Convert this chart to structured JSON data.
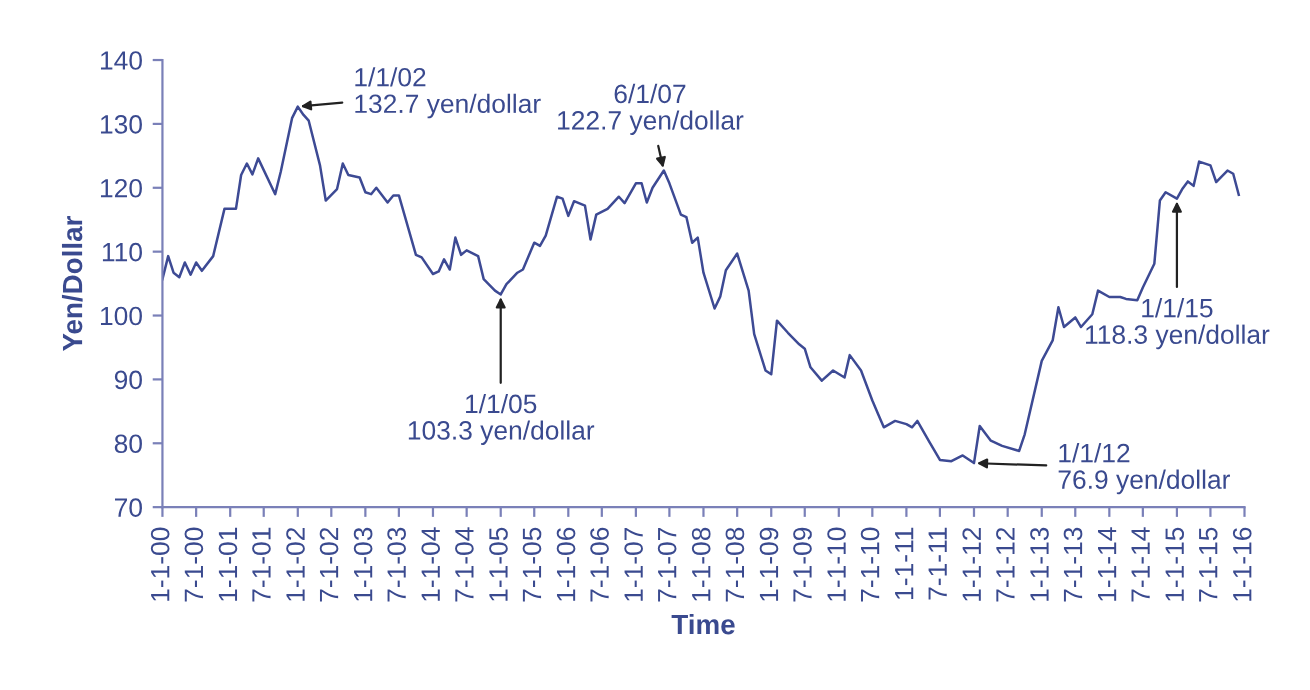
{
  "chart_data": {
    "type": "line",
    "xlabel": "Time",
    "ylabel": "Yen/Dollar",
    "xlim": [
      "2000-01-01",
      "2016-01-01"
    ],
    "xticks": [
      {
        "value": "2000-01-01",
        "label": "1-1-00"
      },
      {
        "value": "2000-07-01",
        "label": "7-1-00"
      },
      {
        "value": "2001-01-01",
        "label": "1-1-01"
      },
      {
        "value": "2001-07-01",
        "label": "7-1-01"
      },
      {
        "value": "2002-01-01",
        "label": "1-1-02"
      },
      {
        "value": "2002-07-01",
        "label": "7-1-02"
      },
      {
        "value": "2003-01-01",
        "label": "1-1-03"
      },
      {
        "value": "2003-07-01",
        "label": "7-1-03"
      },
      {
        "value": "2004-01-01",
        "label": "1-1-04"
      },
      {
        "value": "2004-07-01",
        "label": "7-1-04"
      },
      {
        "value": "2005-01-01",
        "label": "1-1-05"
      },
      {
        "value": "2005-07-01",
        "label": "7-1-05"
      },
      {
        "value": "2006-01-01",
        "label": "1-1-06"
      },
      {
        "value": "2006-07-01",
        "label": "7-1-06"
      },
      {
        "value": "2007-01-01",
        "label": "1-1-07"
      },
      {
        "value": "2007-07-01",
        "label": "7-1-07"
      },
      {
        "value": "2008-01-01",
        "label": "1-1-08"
      },
      {
        "value": "2008-07-01",
        "label": "7-1-08"
      },
      {
        "value": "2009-01-01",
        "label": "1-1-09"
      },
      {
        "value": "2009-07-01",
        "label": "7-1-09"
      },
      {
        "value": "2010-01-01",
        "label": "1-1-10"
      },
      {
        "value": "2010-07-01",
        "label": "7-1-10"
      },
      {
        "value": "2011-01-01",
        "label": "1-1-11"
      },
      {
        "value": "2011-07-01",
        "label": "7-1-11"
      },
      {
        "value": "2012-01-01",
        "label": "1-1-12"
      },
      {
        "value": "2012-07-01",
        "label": "7-1-12"
      },
      {
        "value": "2013-01-01",
        "label": "1-1-13"
      },
      {
        "value": "2013-07-01",
        "label": "7-1-13"
      },
      {
        "value": "2014-01-01",
        "label": "1-1-14"
      },
      {
        "value": "2014-07-01",
        "label": "7-1-14"
      },
      {
        "value": "2015-01-01",
        "label": "1-1-15"
      },
      {
        "value": "2015-07-01",
        "label": "7-1-15"
      },
      {
        "value": "2016-01-01",
        "label": "1-1-16"
      }
    ],
    "ylim": [
      70,
      140
    ],
    "yticks": [
      70,
      80,
      90,
      100,
      110,
      120,
      130,
      140
    ],
    "grid": false,
    "legend": false,
    "marker": "none",
    "line_style": "solid",
    "series": [
      {
        "color": "#3d4a94",
        "x": [
          "2000-01",
          "2000-02",
          "2000-03",
          "2000-04",
          "2000-05",
          "2000-06",
          "2000-07",
          "2000-08",
          "2000-10",
          "2000-12",
          "2001-02",
          "2001-03",
          "2001-04",
          "2001-05",
          "2001-06",
          "2001-09",
          "2001-10",
          "2001-12",
          "2002-01",
          "2002-02",
          "2002-03",
          "2002-05",
          "2002-06",
          "2002-08",
          "2002-09",
          "2002-10",
          "2002-12",
          "2003-01",
          "2003-02",
          "2003-03",
          "2003-05",
          "2003-06",
          "2003-07",
          "2003-10",
          "2003-11",
          "2004-01",
          "2004-02",
          "2004-03",
          "2004-04",
          "2004-05",
          "2004-06",
          "2004-07",
          "2004-09",
          "2004-10",
          "2004-12",
          "2005-01",
          "2005-02",
          "2005-04",
          "2005-05",
          "2005-07",
          "2005-08",
          "2005-09",
          "2005-11",
          "2005-12",
          "2006-01",
          "2006-02",
          "2006-04",
          "2006-05",
          "2006-06",
          "2006-08",
          "2006-10",
          "2006-11",
          "2007-01",
          "2007-02",
          "2007-03",
          "2007-04",
          "2007-06",
          "2007-07",
          "2007-09",
          "2007-10",
          "2007-11",
          "2007-12",
          "2008-01",
          "2008-03",
          "2008-04",
          "2008-05",
          "2008-07",
          "2008-09",
          "2008-10",
          "2008-12",
          "2009-01",
          "2009-02",
          "2009-04",
          "2009-06",
          "2009-07",
          "2009-08",
          "2009-10",
          "2009-12",
          "2010-02",
          "2010-03",
          "2010-05",
          "2010-07",
          "2010-08",
          "2010-09",
          "2010-11",
          "2011-01",
          "2011-02",
          "2011-03",
          "2011-05",
          "2011-07",
          "2011-09",
          "2011-11",
          "2012-01",
          "2012-02",
          "2012-04",
          "2012-06",
          "2012-09",
          "2012-10",
          "2013-01",
          "2013-03",
          "2013-04",
          "2013-05",
          "2013-07",
          "2013-08",
          "2013-10",
          "2013-11",
          "2014-01",
          "2014-03",
          "2014-04",
          "2014-06",
          "2014-07",
          "2014-09",
          "2014-10",
          "2014-11",
          "2015-01",
          "2015-02",
          "2015-03",
          "2015-04",
          "2015-05",
          "2015-07",
          "2015-08",
          "2015-10",
          "2015-11",
          "2015-12"
        ],
        "values": [
          105.7,
          109.3,
          106.7,
          106,
          108.3,
          106.4,
          108.3,
          107,
          109.3,
          116.7,
          116.7,
          122,
          123.8,
          122.1,
          124.6,
          119,
          122.5,
          130.9,
          132.7,
          131.4,
          130.5,
          123.5,
          118,
          119.8,
          123.8,
          122,
          121.6,
          119.3,
          119,
          120,
          117.7,
          118.8,
          118.8,
          109.5,
          109.1,
          106.5,
          106.9,
          108.8,
          107.2,
          112.2,
          109.5,
          110.2,
          109.3,
          105.7,
          103.9,
          103.3,
          104.9,
          106.7,
          107.2,
          111.4,
          110.9,
          112.5,
          118.6,
          118.3,
          115.6,
          117.9,
          117.2,
          111.9,
          115.8,
          116.7,
          118.6,
          117.6,
          120.7,
          120.7,
          117.7,
          120,
          122.7,
          120.7,
          115.8,
          115.4,
          111.4,
          112.2,
          106.7,
          101.1,
          103,
          107.1,
          109.7,
          103.9,
          97.1,
          91.4,
          90.8,
          99.2,
          97.3,
          95.5,
          94.8,
          91.9,
          89.8,
          91.4,
          90.3,
          93.8,
          91.4,
          86.7,
          84.6,
          82.5,
          83.5,
          83,
          82.5,
          83.5,
          80.4,
          77.4,
          77.2,
          78.1,
          76.9,
          82.7,
          80.4,
          79.6,
          78.8,
          81.4,
          92.9,
          96.1,
          101.3,
          98.2,
          99.7,
          98.2,
          100.2,
          103.9,
          102.9,
          102.9,
          102.6,
          102.4,
          104.4,
          108.1,
          118,
          119.3,
          118.3,
          119.9,
          121,
          120.3,
          124.1,
          123.5,
          120.9,
          122.7,
          122.2,
          118.9
        ]
      }
    ],
    "annotations": [
      {
        "text": "1/1/02\n132.7 yen/dollar",
        "x": "2002-01",
        "y": 132.7
      },
      {
        "text": "1/1/05\n103.3 yen/dollar",
        "x": "2005-01",
        "y": 103.3
      },
      {
        "text": "6/1/07\n122.7 yen/dollar",
        "x": "2007-06",
        "y": 122.7
      },
      {
        "text": "1/1/12\n76.9 yen/dollar",
        "x": "2012-01",
        "y": 76.9
      },
      {
        "text": "1/1/15\n118.3 yen/dollar",
        "x": "2015-01",
        "y": 118.3
      }
    ]
  }
}
